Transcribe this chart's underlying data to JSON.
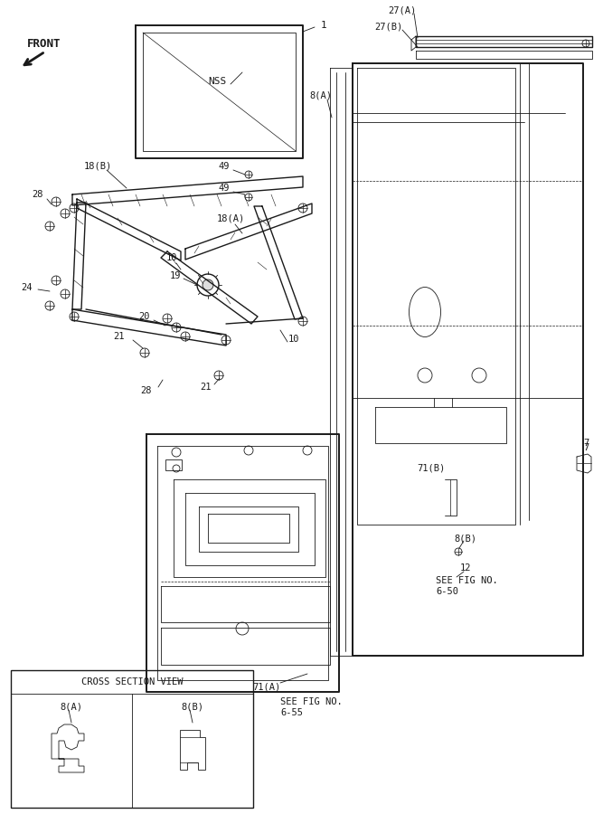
{
  "bg_color": "#ffffff",
  "line_color": "#1a1a1a",
  "fig_width": 6.67,
  "fig_height": 9.0,
  "labels": {
    "front": "FRONT",
    "nss": "NSS",
    "p1": "1",
    "p7": "7",
    "p8a": "8(A)",
    "p8b": "8(B)",
    "p10a": "10",
    "p10b": "10",
    "p12": "12",
    "p18a": "18(A)",
    "p18b": "18(B)",
    "p19": "19",
    "p20": "20",
    "p21a": "21",
    "p21b": "21",
    "p24": "24",
    "p27a": "27(A)",
    "p27b": "27(B)",
    "p28a": "28",
    "p28b": "28",
    "p49a": "49",
    "p49b": "49",
    "p71a": "71(A)",
    "p71b": "71(B)",
    "see_650": "SEE FIG NO.\n6-50",
    "see_655": "SEE FIG NO.\n6-55",
    "cross_hdr": "CROSS SECTION VIEW",
    "cs_8a": "8(A)",
    "cs_8b": "8(B)"
  }
}
